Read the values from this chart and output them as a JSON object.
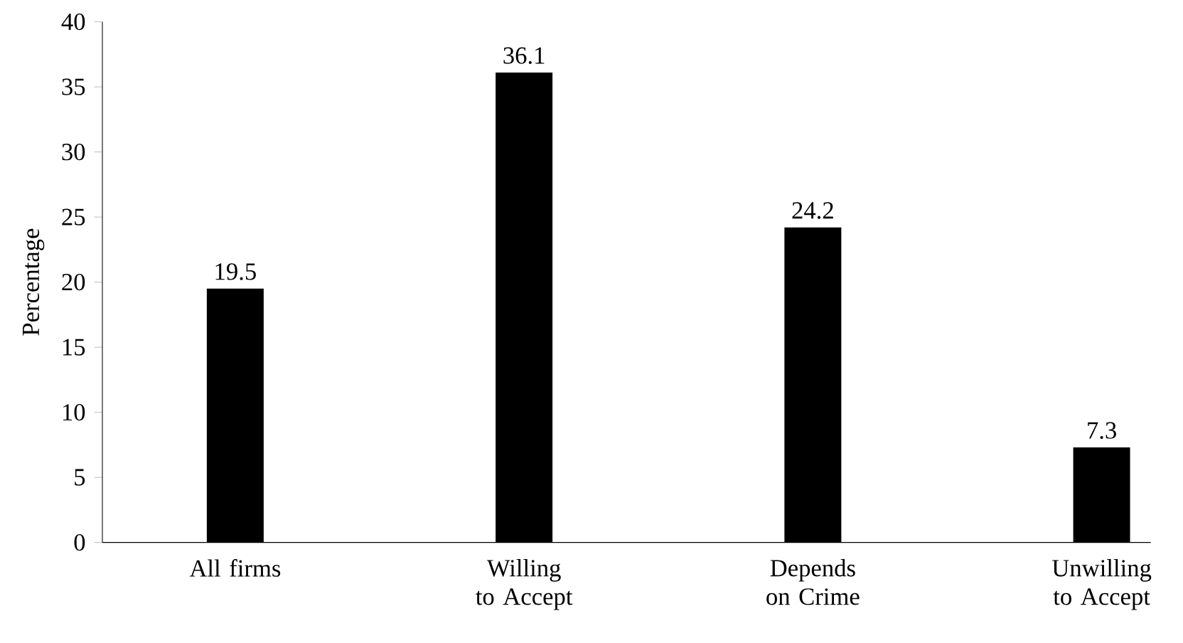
{
  "chart_data": {
    "type": "bar",
    "ylabel": "Percentage",
    "categories": [
      "All firms",
      "Willing to Accept",
      "Depends on Crime",
      "Unwilling to Accept"
    ],
    "values": [
      19.5,
      36.1,
      24.2,
      7.3
    ],
    "color": "#000000",
    "ylim": [
      0,
      40
    ],
    "yticks": [
      0,
      5,
      10,
      15,
      20,
      25,
      30,
      35,
      40
    ],
    "data_labels": true,
    "grid": false
  }
}
